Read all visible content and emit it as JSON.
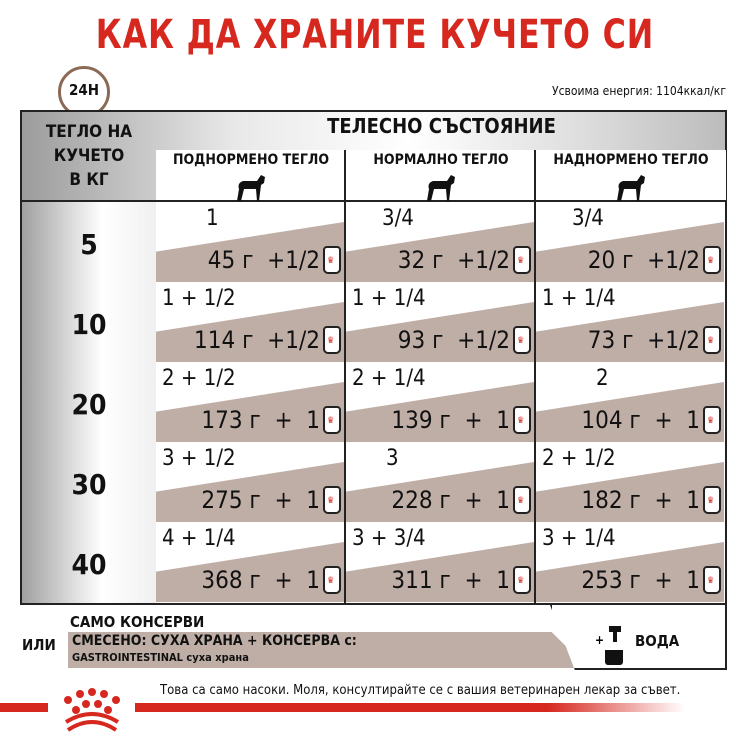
{
  "title": "КАК ДА ХРАНИТЕ КУЧЕТО СИ",
  "clock_label": "24H",
  "energy": "Усвоима енергия: 1104ккал/кг",
  "weight_header": [
    "ТЕГЛО НА",
    "КУЧЕТО",
    "В КГ"
  ],
  "body_condition": "ТЕЛЕСНО СЪСТОЯНИЕ",
  "columns": [
    "ПОДНОРМЕНО ТЕГЛО",
    "НОРМАЛНО ТЕГЛО",
    "НАДНОРМЕНО ТЕГЛО"
  ],
  "rows": [
    {
      "kg": "5",
      "cells": [
        {
          "dry": "1",
          "wet": "45 г  +1/2"
        },
        {
          "dry": "3/4",
          "wet": "32 г  +1/2"
        },
        {
          "dry": "3/4",
          "wet": "20 г  +1/2"
        }
      ]
    },
    {
      "kg": "10",
      "cells": [
        {
          "dry": "1 + 1/2",
          "wet": "114 г  +1/2"
        },
        {
          "dry": "1 + 1/4",
          "wet": "93 г  +1/2"
        },
        {
          "dry": "1 + 1/4",
          "wet": "73 г  +1/2"
        }
      ]
    },
    {
      "kg": "20",
      "cells": [
        {
          "dry": "2 + 1/2",
          "wet": "173 г  +  1"
        },
        {
          "dry": "2 + 1/4",
          "wet": "139 г  +  1"
        },
        {
          "dry": "2",
          "wet": "104 г  +  1"
        }
      ]
    },
    {
      "kg": "30",
      "cells": [
        {
          "dry": "3 + 1/2",
          "wet": "275 г  +  1"
        },
        {
          "dry": "3",
          "wet": "228 г  +  1"
        },
        {
          "dry": "2 + 1/2",
          "wet": "182 г  +  1"
        }
      ]
    },
    {
      "kg": "40",
      "cells": [
        {
          "dry": "4 + 1/4",
          "wet": "368 г  +  1"
        },
        {
          "dry": "3 + 3/4",
          "wet": "311 г  +  1"
        },
        {
          "dry": "3 + 1/4",
          "wet": "253 г  +  1"
        }
      ]
    }
  ],
  "legend": {
    "only_cans": "САМО КОНСЕРВИ",
    "or": "ИЛИ",
    "mixed": "СМЕСЕНО: СУХА ХРАНА + КОНСЕРВА с:",
    "mixed_sub": "GASTROINTESTINAL суха храна",
    "water": "ВОДА"
  },
  "note": "Това са само насоки. Моля, консултирайте се с вашия ветеринарен лекар за съвет.",
  "colors": {
    "brand_red": "#d6281f",
    "shade": "#bfaea6"
  }
}
